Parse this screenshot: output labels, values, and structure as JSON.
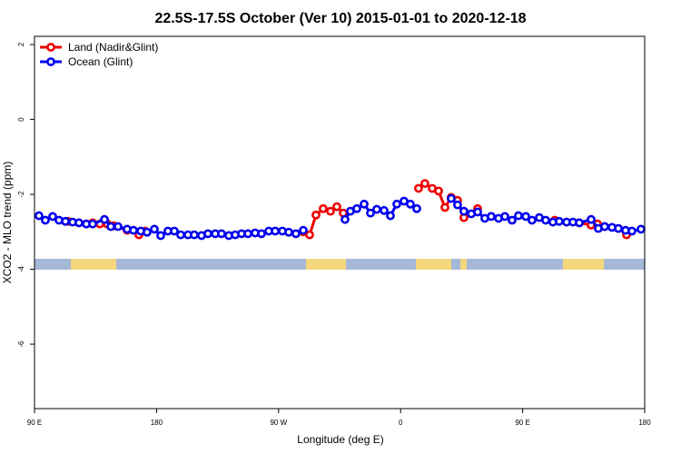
{
  "chart_data": {
    "type": "line",
    "title": "22.5S-17.5S October (Ver 10)   2015-01-01 to 2020-12-18",
    "x_label": "Longitude (deg E)",
    "y_label": "XCO2 - MLO trend (ppm)",
    "xlim": [
      90,
      540
    ],
    "ylim": [
      -7.72,
      2.22
    ],
    "xticks": [
      {
        "value": 90,
        "label": "90 E"
      },
      180,
      {
        "value": 270,
        "label": "90 W"
      },
      {
        "value": 360,
        "label": "0"
      },
      {
        "value": 450,
        "label": "90 E"
      },
      {
        "value": 540,
        "label": "180"
      }
    ],
    "yticks": [
      2,
      0,
      -2,
      -4,
      -6
    ],
    "legend": "top-left",
    "series": [
      {
        "name": "Land (Nadir&Glint)",
        "color": "#ee0000",
        "x": [
          114.8,
          122.8,
          128.2,
          132.9,
          138.2,
          143.6,
          148.3,
          158.3,
          167.0,
          171.7,
          230,
          288.2,
          292.9,
          297.6,
          302.9,
          308.3,
          313.0,
          317.7,
          345,
          373.2,
          377.9,
          383.3,
          388.0,
          392.7,
          397.3,
          402.0,
          406.7,
          416.8,
          445,
          473.7,
          482.4,
          491.8,
          500.5,
          505.2,
          510.5,
          520.6,
          526.6
        ],
        "values": [
          -2.72,
          -2.76,
          -2.79,
          -2.76,
          -2.79,
          -2.79,
          -2.84,
          -2.96,
          -3.08,
          -2.98,
          null,
          -3.0,
          -3.08,
          -2.55,
          -2.38,
          -2.45,
          -2.33,
          -2.5,
          null,
          -1.84,
          -1.71,
          -1.84,
          -1.91,
          -2.35,
          -2.08,
          -2.16,
          -2.62,
          -2.38,
          null,
          -2.69,
          -2.74,
          -2.76,
          -2.82,
          -2.79,
          -2.86,
          -2.91,
          -3.08
        ]
      },
      {
        "name": "Ocean (Glint)",
        "color": "#0000ee",
        "x": [
          93.3,
          98.0,
          103.4,
          108.1,
          112.8,
          118.1,
          122.8,
          128.2,
          132.9,
          141.6,
          146.3,
          151.6,
          158.3,
          163.0,
          168.4,
          173.0,
          178.4,
          183.1,
          188.4,
          193.1,
          197.8,
          203.2,
          207.8,
          213.2,
          217.9,
          223.3,
          227.9,
          233.3,
          238.0,
          242.7,
          247.4,
          252.7,
          257.4,
          262.8,
          267.5,
          272.8,
          277.5,
          282.8,
          288.2,
          300,
          319.0,
          323.0,
          327.7,
          333.1,
          337.8,
          342.4,
          347.8,
          352.5,
          357.2,
          362.5,
          367.2,
          371.9,
          385,
          397.3,
          402.0,
          406.7,
          412.1,
          416.8,
          422.1,
          426.8,
          432.2,
          436.9,
          442.2,
          446.9,
          452.3,
          456.9,
          462.3,
          467.0,
          472.3,
          477.0,
          482.4,
          487.1,
          491.8,
          500.5,
          505.8,
          510.5,
          515.9,
          520.6,
          525.9,
          530.6,
          537.3
        ],
        "values": [
          -2.57,
          -2.69,
          -2.59,
          -2.69,
          -2.72,
          -2.74,
          -2.76,
          -2.79,
          -2.79,
          -2.67,
          -2.86,
          -2.86,
          -2.93,
          -2.96,
          -2.98,
          -3.01,
          -2.93,
          -3.1,
          -2.98,
          -2.98,
          -3.08,
          -3.08,
          -3.08,
          -3.1,
          -3.05,
          -3.05,
          -3.05,
          -3.1,
          -3.08,
          -3.05,
          -3.05,
          -3.03,
          -3.05,
          -2.98,
          -2.98,
          -2.98,
          -3.01,
          -3.05,
          -2.96,
          null,
          -2.67,
          -2.45,
          -2.38,
          -2.26,
          -2.5,
          -2.4,
          -2.43,
          -2.57,
          -2.26,
          -2.18,
          -2.26,
          -2.38,
          null,
          -2.11,
          -2.28,
          -2.45,
          -2.52,
          -2.47,
          -2.64,
          -2.59,
          -2.64,
          -2.59,
          -2.69,
          -2.57,
          -2.59,
          -2.69,
          -2.62,
          -2.69,
          -2.74,
          -2.72,
          -2.74,
          -2.74,
          -2.76,
          -2.67,
          -2.91,
          -2.86,
          -2.88,
          -2.91,
          -2.96,
          -2.98,
          -2.93
        ]
      }
    ]
  }
}
